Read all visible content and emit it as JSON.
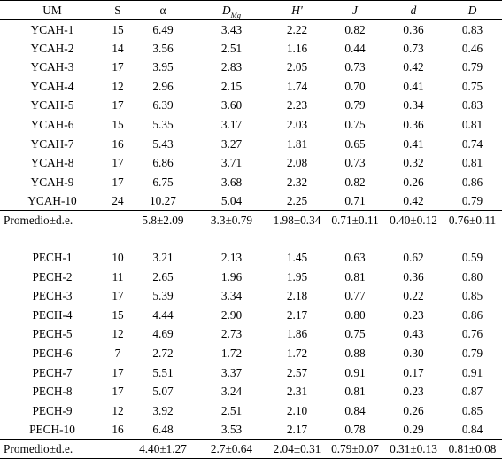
{
  "headers": {
    "um": "UM",
    "s": "S",
    "alpha": "α",
    "dmg_main": "D",
    "dmg_sub": "Mg",
    "h": "H'",
    "j": "J",
    "d_small": "d",
    "d_big": "D"
  },
  "ycah_rows": [
    [
      "YCAH-1",
      "15",
      "6.49",
      "3.43",
      "2.22",
      "0.82",
      "0.36",
      "0.83"
    ],
    [
      "YCAH-2",
      "14",
      "3.56",
      "2.51",
      "1.16",
      "0.44",
      "0.73",
      "0.46"
    ],
    [
      "YCAH-3",
      "17",
      "3.95",
      "2.83",
      "2.05",
      "0.73",
      "0.42",
      "0.79"
    ],
    [
      "YCAH-4",
      "12",
      "2.96",
      "2.15",
      "1.74",
      "0.70",
      "0.41",
      "0.75"
    ],
    [
      "YCAH-5",
      "17",
      "6.39",
      "3.60",
      "2.23",
      "0.79",
      "0.34",
      "0.83"
    ],
    [
      "YCAH-6",
      "15",
      "5.35",
      "3.17",
      "2.03",
      "0.75",
      "0.36",
      "0.81"
    ],
    [
      "YCAH-7",
      "16",
      "5.43",
      "3.27",
      "1.81",
      "0.65",
      "0.41",
      "0.74"
    ],
    [
      "YCAH-8",
      "17",
      "6.86",
      "3.71",
      "2.08",
      "0.73",
      "0.32",
      "0.81"
    ],
    [
      "YCAH-9",
      "17",
      "6.75",
      "3.68",
      "2.32",
      "0.82",
      "0.26",
      "0.86"
    ],
    [
      "YCAH-10",
      "24",
      "10.27",
      "5.04",
      "2.25",
      "0.71",
      "0.42",
      "0.79"
    ]
  ],
  "ycah_summary": [
    "Promedio±d.e.",
    "",
    "5.8±2.09",
    "3.3±0.79",
    "1.98±0.34",
    "0.71±0.11",
    "0.40±0.12",
    "0.76±0.11"
  ],
  "pech_rows": [
    [
      "PECH-1",
      "10",
      "3.21",
      "2.13",
      "1.45",
      "0.63",
      "0.62",
      "0.59"
    ],
    [
      "PECH-2",
      "11",
      "2.65",
      "1.96",
      "1.95",
      "0.81",
      "0.36",
      "0.80"
    ],
    [
      "PECH-3",
      "17",
      "5.39",
      "3.34",
      "2.18",
      "0.77",
      "0.22",
      "0.85"
    ],
    [
      "PECH-4",
      "15",
      "4.44",
      "2.90",
      "2.17",
      "0.80",
      "0.23",
      "0.86"
    ],
    [
      "PECH-5",
      "12",
      "4.69",
      "2.73",
      "1.86",
      "0.75",
      "0.43",
      "0.76"
    ],
    [
      "PECH-6",
      "7",
      "2.72",
      "1.72",
      "1.72",
      "0.88",
      "0.30",
      "0.79"
    ],
    [
      "PECH-7",
      "17",
      "5.51",
      "3.37",
      "2.57",
      "0.91",
      "0.17",
      "0.91"
    ],
    [
      "PECH-8",
      "17",
      "5.07",
      "3.24",
      "2.31",
      "0.81",
      "0.23",
      "0.87"
    ],
    [
      "PECH-9",
      "12",
      "3.92",
      "2.51",
      "2.10",
      "0.84",
      "0.26",
      "0.85"
    ],
    [
      "PECH-10",
      "16",
      "6.48",
      "3.53",
      "2.17",
      "0.78",
      "0.29",
      "0.84"
    ]
  ],
  "pech_summary": [
    "Promedio±d.e.",
    "",
    "4.40±1.27",
    "2.7±0.64",
    "2.04±0.31",
    "0.79±0.07",
    "0.31±0.13",
    "0.81±0.08"
  ]
}
